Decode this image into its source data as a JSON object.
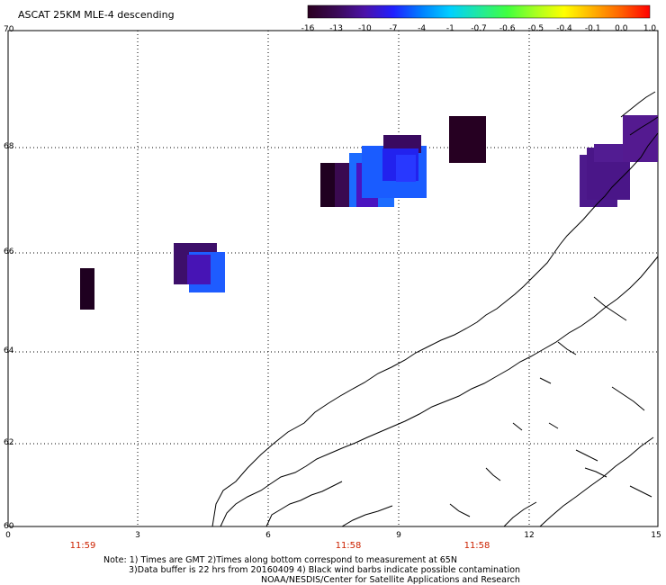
{
  "title": "ASCAT 25KM MLE-4 descending",
  "y_axis": {
    "ticks": [
      "70",
      "68",
      "66",
      "64",
      "62",
      "60"
    ]
  },
  "x_axis": {
    "ticks": [
      "0",
      "3",
      "6",
      "9",
      "12",
      "15"
    ]
  },
  "time_labels": [
    "11:59",
    "11:58",
    "11:58"
  ],
  "colorbar": {
    "ticks": [
      "-16",
      "-13",
      "-10",
      "-7",
      "-4",
      "-1",
      "-0.7",
      "-0.6",
      "-0.5",
      "-0.4",
      "-0.1",
      "0.0",
      "1.0"
    ],
    "colors": [
      "#2a0020",
      "#3a0a55",
      "#4b12a8",
      "#2020ff",
      "#0080ff",
      "#00d0ff",
      "#20e8a0",
      "#40ff40",
      "#a8ff20",
      "#ffff00",
      "#ffb000",
      "#ff6000",
      "#ff0000"
    ]
  },
  "notes": [
    "Note: 1) Times are GMT 2)Times along bottom correspond to measurement at 65N",
    "3)Data buffer is 22 hrs from 20160409 4) Black wind barbs indicate possible contamination",
    "NOAA/NESDIS/Center for Satellite Applications and Research"
  ]
}
